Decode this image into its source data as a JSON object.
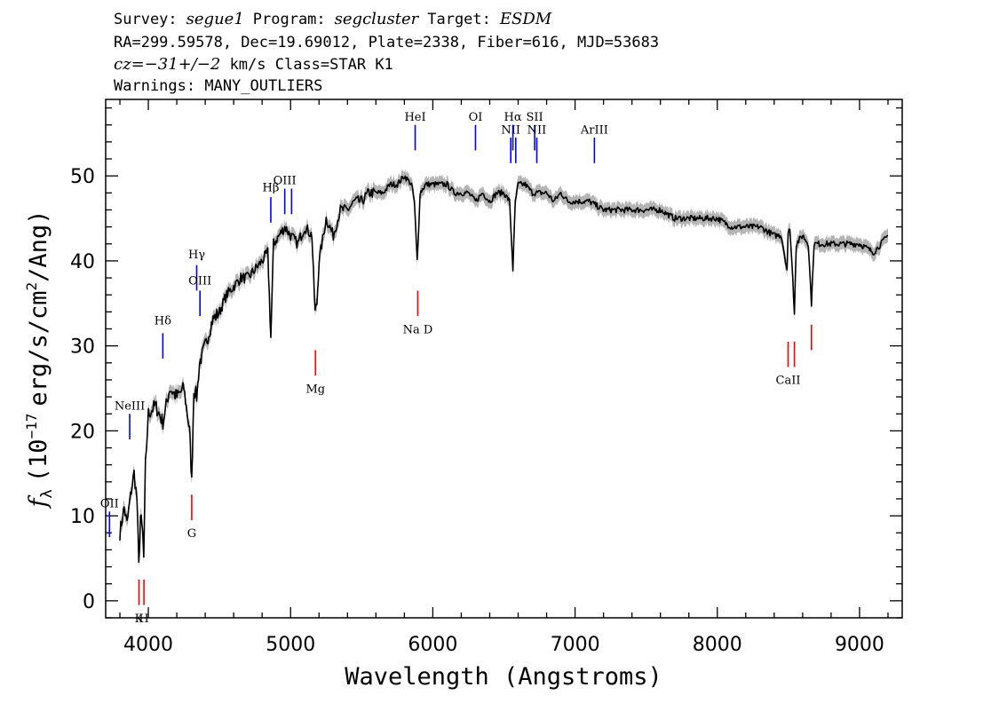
{
  "header": {
    "line1": {
      "survey_label": "Survey:",
      "survey": "segue1",
      "program_label": "Program:",
      "program": "segcluster",
      "target_label": "Target:",
      "target": "ESDM"
    },
    "line2": "RA=299.59578, Dec=19.69012, Plate=2338, Fiber=616, MJD=53683",
    "line3": {
      "cz_label": "cz=",
      "cz_value": "−31+/−2",
      "rest": " km/s  Class=STAR K1"
    },
    "line4": "Warnings: MANY_OUTLIERS"
  },
  "chart_data": {
    "type": "line",
    "xlabel": "Wavelength (Angstroms)",
    "ylabel": {
      "f": "f",
      "sub": "λ",
      "text": "(10",
      "exp": "−17",
      "rest": "erg/s/cm",
      "exp2": "2",
      "end": "/Ang)"
    },
    "xlim": [
      3700,
      9300
    ],
    "ylim": [
      -2,
      59
    ],
    "x_ticks": [
      4000,
      5000,
      6000,
      7000,
      8000,
      9000
    ],
    "y_ticks": [
      0,
      10,
      20,
      30,
      40,
      50
    ],
    "x_minor_step": 200,
    "y_minor_step": 2,
    "colors": {
      "spectrum": "#000000",
      "error_band": "#b4b4b4",
      "emission": "#0000ff",
      "absorption": "#ff0000"
    },
    "series": [
      {
        "x": [
          3800,
          3830,
          3850,
          3880,
          3900,
          3920,
          3933,
          3945,
          3960,
          3968,
          3980,
          4000,
          4050,
          4102,
          4150,
          4200,
          4250,
          4290,
          4305,
          4320,
          4340,
          4360,
          4400,
          4450,
          4500,
          4550,
          4600,
          4650,
          4700,
          4750,
          4800,
          4840,
          4861,
          4880,
          4920,
          4960,
          5000,
          5050,
          5100,
          5150,
          5172,
          5185,
          5200,
          5250,
          5300,
          5350,
          5400,
          5450,
          5500,
          5550,
          5600,
          5650,
          5700,
          5750,
          5800,
          5850,
          5870,
          5890,
          5896,
          5910,
          5950,
          6000,
          6050,
          6100,
          6150,
          6200,
          6250,
          6300,
          6350,
          6400,
          6450,
          6500,
          6540,
          6563,
          6580,
          6600,
          6650,
          6700,
          6750,
          6800,
          6850,
          6900,
          6950,
          7000,
          7100,
          7200,
          7300,
          7400,
          7500,
          7600,
          7700,
          7800,
          7900,
          8000,
          8100,
          8200,
          8300,
          8400,
          8450,
          8490,
          8498,
          8510,
          8530,
          8542,
          8555,
          8600,
          8640,
          8662,
          8680,
          8700,
          8800,
          8900,
          9000,
          9100,
          9150,
          9200
        ],
        "y": [
          8,
          11,
          9,
          13,
          15,
          12,
          4,
          10,
          8,
          5,
          16,
          22,
          23,
          21,
          25,
          24,
          25,
          20,
          14,
          25,
          24,
          28,
          30,
          33,
          34,
          36,
          37,
          38,
          38,
          39,
          40,
          41,
          31,
          42,
          43,
          44,
          43,
          42,
          44,
          43,
          34,
          35,
          40,
          45,
          43,
          46,
          46,
          47,
          47,
          48,
          48,
          48,
          49,
          49,
          50,
          49,
          47,
          40,
          42,
          48,
          49,
          49,
          49,
          49,
          48,
          48,
          48,
          47,
          48,
          47,
          48,
          48,
          47,
          39,
          47,
          49,
          49,
          48,
          48,
          48,
          47,
          48,
          47,
          47,
          47,
          46,
          46,
          46,
          46,
          46,
          45,
          45,
          45,
          45,
          44,
          44,
          44,
          43,
          43,
          39,
          43,
          44,
          38,
          34,
          42,
          43,
          42,
          35,
          42,
          42,
          42,
          42,
          42,
          41,
          42,
          43
        ]
      }
    ],
    "emission_lines": [
      {
        "label": "OII",
        "x": 3727,
        "y0": 7.5,
        "y1": 10.5,
        "label_y": 11
      },
      {
        "label": "NeIII",
        "x": 3869,
        "y0": 19,
        "y1": 22,
        "label_y": 22.5
      },
      {
        "label": "Hδ",
        "x": 4102,
        "y0": 28.5,
        "y1": 31.5,
        "label_y": 32.5
      },
      {
        "label": "Hγ",
        "x": 4340,
        "y0": 36.5,
        "y1": 39.5,
        "label_y": 40.3
      },
      {
        "label": "OIII",
        "x": 4363,
        "y0": 33.5,
        "y1": 36.5,
        "label_y": 37.2
      },
      {
        "label": "Hβ",
        "x": 4861,
        "y0": 44.5,
        "y1": 47.5,
        "label_y": 48.2
      },
      {
        "label": "OIII",
        "x": 4959,
        "y0": 45.5,
        "y1": 48.5,
        "label_y": 49
      },
      {
        "label": "",
        "x": 5007,
        "y0": 45.5,
        "y1": 48.5
      },
      {
        "label": "HeI",
        "x": 5876,
        "y0": 53,
        "y1": 56,
        "label_y": 56.5
      },
      {
        "label": "OI",
        "x": 6300,
        "y0": 53,
        "y1": 56,
        "label_y": 56.5
      },
      {
        "label": "NII",
        "x": 6548,
        "y0": 51.5,
        "y1": 54.5,
        "label_y": 55
      },
      {
        "label": "Hα",
        "x": 6563,
        "y0": 53,
        "y1": 56,
        "label_y": 56.5
      },
      {
        "label": "",
        "x": 6583,
        "y0": 51.5,
        "y1": 54.5
      },
      {
        "label": "SII",
        "x": 6716,
        "y0": 53,
        "y1": 56,
        "label_y": 56.5
      },
      {
        "label": "NII",
        "x": 6731,
        "y0": 51.5,
        "y1": 54.5,
        "label_y": 55
      },
      {
        "label": "ArIII",
        "x": 7136,
        "y0": 51.5,
        "y1": 54.5,
        "label_y": 55
      }
    ],
    "absorption_lines": [
      {
        "label": "K",
        "x": 3934,
        "y0": -0.5,
        "y1": 2.5,
        "label_y": -2.5
      },
      {
        "label": "H",
        "x": 3969,
        "y0": -0.5,
        "y1": 2.5,
        "label_y": -2.5
      },
      {
        "label": "G",
        "x": 4305,
        "y0": 9.5,
        "y1": 12.5,
        "label_y": 7.5
      },
      {
        "label": "Mg",
        "x": 5175,
        "y0": 26.5,
        "y1": 29.5,
        "label_y": 24.5
      },
      {
        "label": "Na D",
        "x": 5894,
        "y0": 33.5,
        "y1": 36.5,
        "label_y": 31.5
      },
      {
        "label": "CaII",
        "x": 8498,
        "y0": 27.5,
        "y1": 30.5,
        "label_y": 25.5
      },
      {
        "label": "",
        "x": 8542,
        "y0": 27.5,
        "y1": 30.5
      },
      {
        "label": "",
        "x": 8662,
        "y0": 29.5,
        "y1": 32.5
      }
    ]
  }
}
